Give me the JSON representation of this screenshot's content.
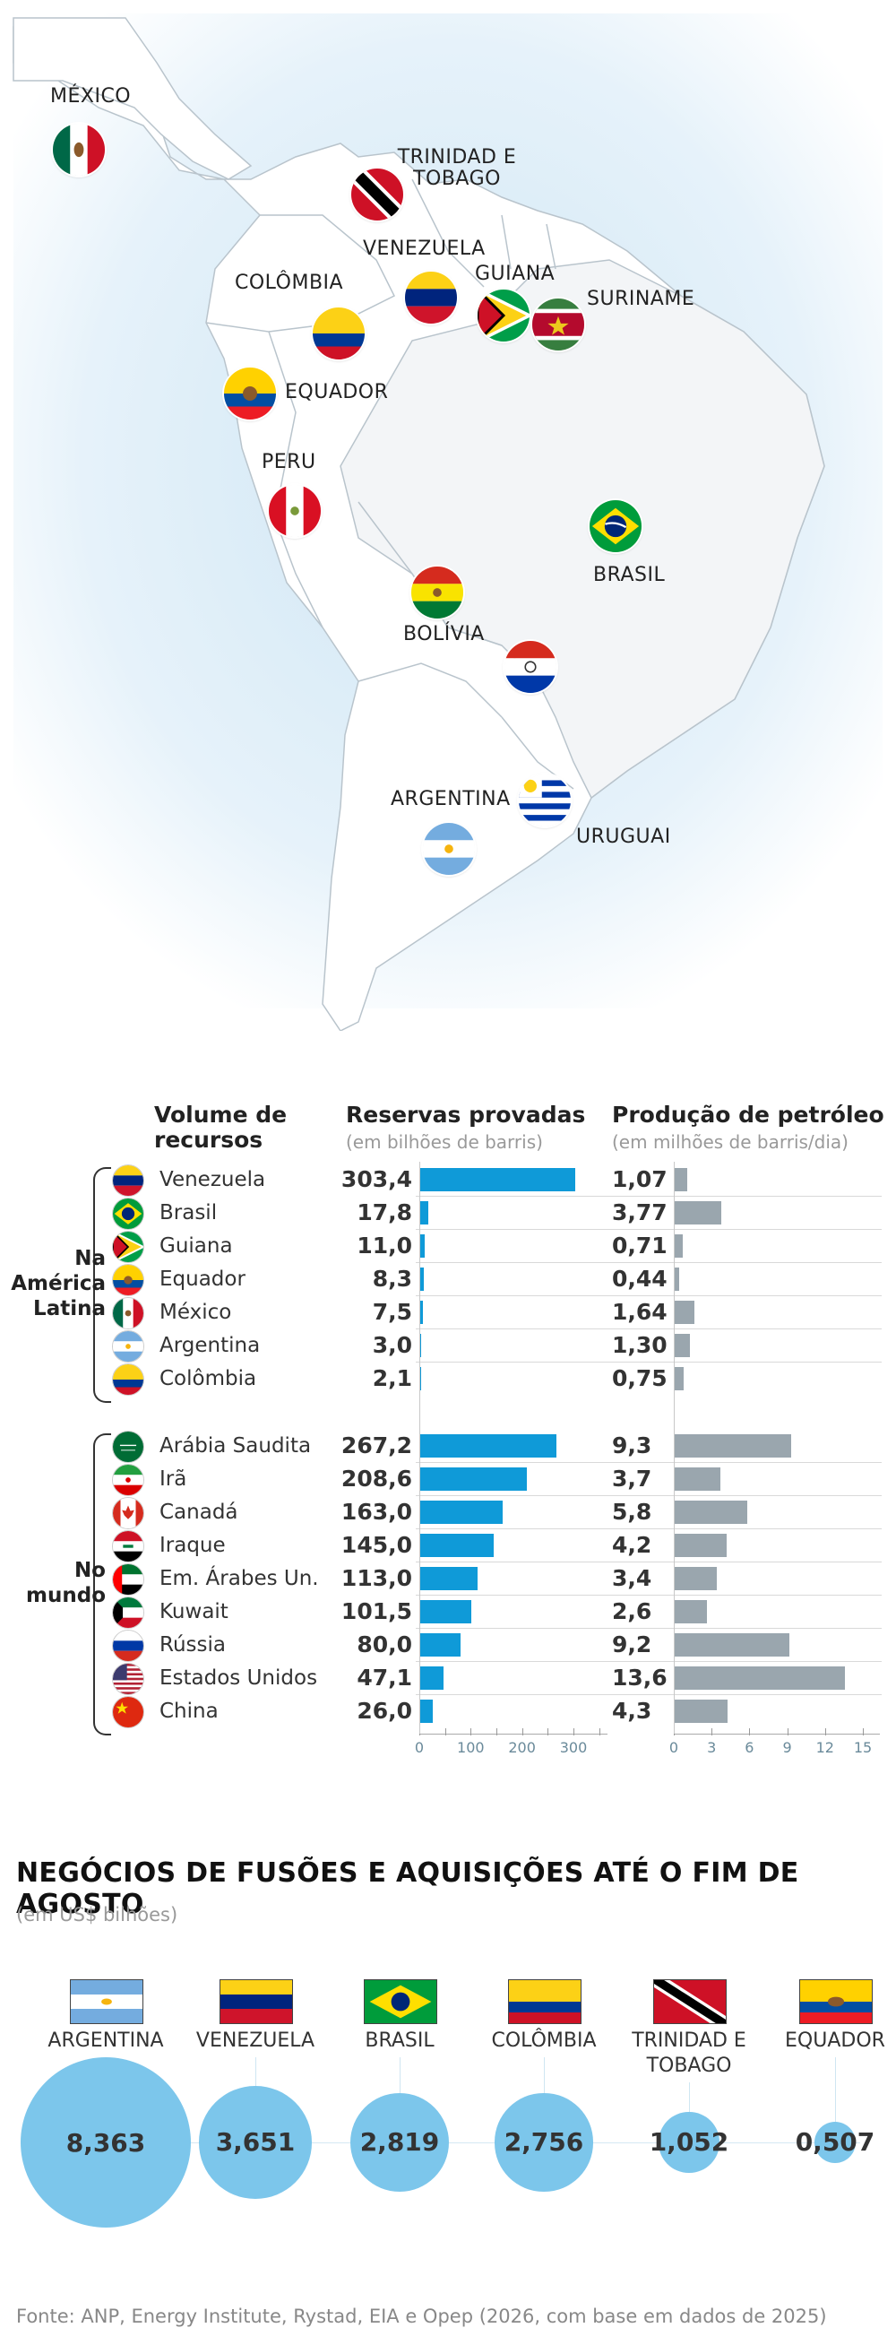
{
  "map": {
    "countries": [
      {
        "name": "MÉXICO"
      },
      {
        "name": "TRINIDAD E TOBAGO"
      },
      {
        "name": "VENEZUELA"
      },
      {
        "name": "GUIANA"
      },
      {
        "name": "SURINAME"
      },
      {
        "name": "COLÔMBIA"
      },
      {
        "name": "EQUADOR"
      },
      {
        "name": "PERU"
      },
      {
        "name": "BRASIL"
      },
      {
        "name": "BOLÍVIA"
      },
      {
        "name": "ARGENTINA"
      },
      {
        "name": "URUGUAI"
      }
    ],
    "trinidad_line1": "TRINIDAD E",
    "trinidad_line2": "TOBAGO"
  },
  "chart_data": [
    {
      "type": "bar",
      "title": "Volume de recursos",
      "columns": {
        "reserves_title": "Reservas provadas",
        "reserves_unit": "(em bilhões de barris)",
        "production_title": "Produção de petróleo",
        "production_unit": "(em milhões de barris/dia)"
      },
      "groups": [
        {
          "label": "Na América Latina",
          "label_lines": [
            "Na",
            "América",
            "Latina"
          ],
          "rows": [
            {
              "country": "Venezuela",
              "reserves": 303.4,
              "reserves_label": "303,4",
              "production": 1.07,
              "production_label": "1,07",
              "flag": "venezuela"
            },
            {
              "country": "Brasil",
              "reserves": 17.8,
              "reserves_label": "17,8",
              "production": 3.77,
              "production_label": "3,77",
              "flag": "brasil"
            },
            {
              "country": "Guiana",
              "reserves": 11.0,
              "reserves_label": "11,0",
              "production": 0.71,
              "production_label": "0,71",
              "flag": "guiana"
            },
            {
              "country": "Equador",
              "reserves": 8.3,
              "reserves_label": "8,3",
              "production": 0.44,
              "production_label": "0,44",
              "flag": "equador"
            },
            {
              "country": "México",
              "reserves": 7.5,
              "reserves_label": "7,5",
              "production": 1.64,
              "production_label": "1,64",
              "flag": "mexico"
            },
            {
              "country": "Argentina",
              "reserves": 3.0,
              "reserves_label": "3,0",
              "production": 1.3,
              "production_label": "1,30",
              "flag": "argentina"
            },
            {
              "country": "Colômbia",
              "reserves": 2.1,
              "reserves_label": "2,1",
              "production": 0.75,
              "production_label": "0,75",
              "flag": "colombia"
            }
          ]
        },
        {
          "label": "No mundo",
          "label_lines": [
            "No",
            "mundo"
          ],
          "rows": [
            {
              "country": "Arábia Saudita",
              "reserves": 267.2,
              "reserves_label": "267,2",
              "production": 9.3,
              "production_label": "9,3",
              "flag": "saudi"
            },
            {
              "country": "Irã",
              "reserves": 208.6,
              "reserves_label": "208,6",
              "production": 3.7,
              "production_label": "3,7",
              "flag": "iran"
            },
            {
              "country": "Canadá",
              "reserves": 163.0,
              "reserves_label": "163,0",
              "production": 5.8,
              "production_label": "5,8",
              "flag": "canada"
            },
            {
              "country": "Iraque",
              "reserves": 145.0,
              "reserves_label": "145,0",
              "production": 4.2,
              "production_label": "4,2",
              "flag": "iraq"
            },
            {
              "country": "Em. Árabes Un.",
              "reserves": 113.0,
              "reserves_label": "113,0",
              "production": 3.4,
              "production_label": "3,4",
              "flag": "uae"
            },
            {
              "country": "Kuwait",
              "reserves": 101.5,
              "reserves_label": "101,5",
              "production": 2.6,
              "production_label": "2,6",
              "flag": "kuwait"
            },
            {
              "country": "Rússia",
              "reserves": 80.0,
              "reserves_label": "80,0",
              "production": 9.2,
              "production_label": "9,2",
              "flag": "russia"
            },
            {
              "country": "Estados Unidos",
              "reserves": 47.1,
              "reserves_label": "47,1",
              "production": 13.6,
              "production_label": "13,6",
              "flag": "usa"
            },
            {
              "country": "China",
              "reserves": 26.0,
              "reserves_label": "26,0",
              "production": 4.3,
              "production_label": "4,3",
              "flag": "china"
            }
          ]
        }
      ],
      "reserves_axis": {
        "range": [
          0,
          340
        ],
        "ticks": [
          0,
          100,
          200,
          300
        ],
        "tick_labels": [
          "0",
          "100",
          "200",
          "300"
        ]
      },
      "production_axis": {
        "range": [
          0,
          16
        ],
        "ticks": [
          0,
          3,
          6,
          9,
          12,
          15
        ],
        "tick_labels": [
          "0",
          "3",
          "6",
          "9",
          "12",
          "15"
        ]
      },
      "colors": {
        "reserves": "#0f9ad8",
        "production": "#9aa6ae"
      }
    },
    {
      "type": "bubble",
      "title": "NEGÓCIOS DE FUSÕES E AQUISIÇÕES ATÉ O FIM DE AGOSTO",
      "subtitle": "(em US$ bilhões)",
      "items": [
        {
          "country": "ARGENTINA",
          "lines": [
            "ARGENTINA"
          ],
          "value": 8.363,
          "label": "8,363",
          "flag": "argentina"
        },
        {
          "country": "VENEZUELA",
          "lines": [
            "VENEZUELA"
          ],
          "value": 3.651,
          "label": "3,651",
          "flag": "venezuela"
        },
        {
          "country": "BRASIL",
          "lines": [
            "BRASIL"
          ],
          "value": 2.819,
          "label": "2,819",
          "flag": "brasil"
        },
        {
          "country": "COLÔMBIA",
          "lines": [
            "COLÔMBIA"
          ],
          "value": 2.756,
          "label": "2,756",
          "flag": "colombia"
        },
        {
          "country": "TRINIDAD E TOBAGO",
          "lines": [
            "TRINIDAD E",
            "TOBAGO"
          ],
          "value": 1.052,
          "label": "1,052",
          "flag": "trinidad"
        },
        {
          "country": "EQUADOR",
          "lines": [
            "EQUADOR"
          ],
          "value": 0.507,
          "label": "0,507",
          "flag": "equador"
        }
      ],
      "colors": {
        "bubble": "#7cc6eb"
      }
    }
  ],
  "source": "Fonte: ANP, Energy Institute, Rystad, EIA e Opep (2026, com base em dados de 2025)"
}
